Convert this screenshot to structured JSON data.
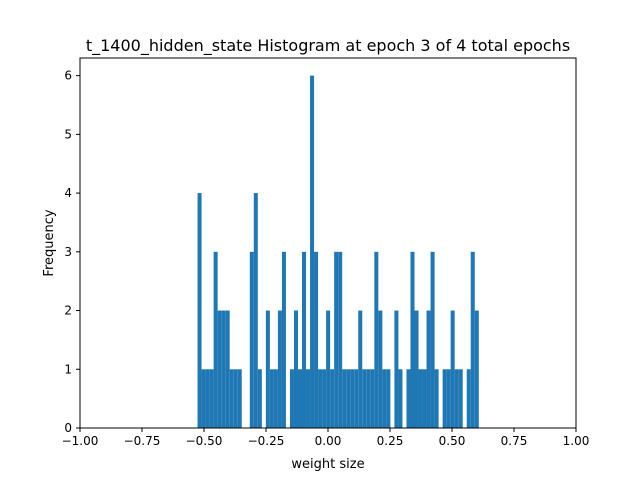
{
  "chart_data": {
    "type": "bar",
    "title": "t_1400_hidden_state Histogram at epoch 3 of 4 total epochs",
    "xlabel": "weight size",
    "ylabel": "Frequency",
    "xlim": [
      -1.0,
      1.0
    ],
    "ylim": [
      0,
      6.3
    ],
    "xticks": [
      -1.0,
      -0.75,
      -0.5,
      -0.25,
      0.0,
      0.25,
      0.5,
      0.75,
      1.0
    ],
    "xtick_labels": [
      "−1.00",
      "−0.75",
      "−0.50",
      "−0.25",
      "0.00",
      "0.25",
      "0.50",
      "0.75",
      "1.00"
    ],
    "yticks": [
      0,
      1,
      2,
      3,
      4,
      5,
      6
    ],
    "ytick_labels": [
      "0",
      "1",
      "2",
      "3",
      "4",
      "5",
      "6"
    ],
    "bin_start": -0.526,
    "bin_width": 0.0162,
    "counts": [
      4,
      1,
      1,
      1,
      3,
      2,
      2,
      2,
      1,
      1,
      1,
      0,
      0,
      3,
      4,
      1,
      0,
      2,
      1,
      1,
      2,
      3,
      0,
      1,
      2,
      1,
      3,
      1,
      6,
      3,
      1,
      1,
      2,
      1,
      3,
      3,
      1,
      1,
      1,
      1,
      2,
      1,
      1,
      1,
      3,
      2,
      1,
      1,
      0,
      2,
      1,
      0,
      1,
      3,
      2,
      1,
      1,
      2,
      3,
      1,
      0,
      1,
      1,
      2,
      1,
      1,
      0,
      1,
      3,
      2
    ],
    "bar_color": "#1f77b4",
    "grid": false,
    "legend": "none"
  }
}
